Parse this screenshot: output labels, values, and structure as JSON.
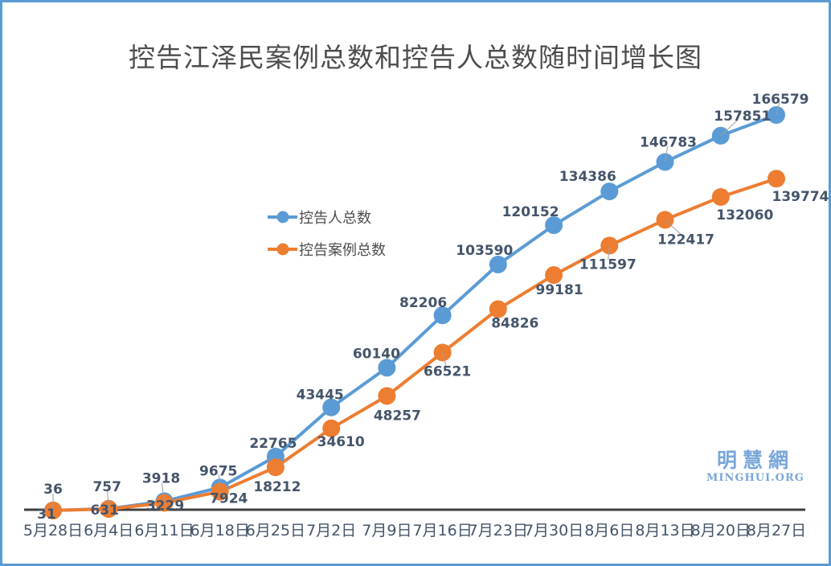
{
  "title": "控告江泽民案例总数和控告人总数随时间增长图",
  "watermark": {
    "cjk": "明慧網",
    "latin": "MINGHUI.ORG"
  },
  "legend": [
    {
      "label": "控告人总数",
      "color": "#5b9bd5"
    },
    {
      "label": "控告案例总数",
      "color": "#ed7d31"
    }
  ],
  "colors": {
    "blue_series": "#5b9bd5",
    "orange_series": "#ed7d31",
    "data_label": "#44546a",
    "axis_line": "#3f3f3f",
    "title_text": "#4d4d4d",
    "frame_border": "#5b9bd5",
    "watermark": "#79a7d9",
    "leader_line": "#9e9e9e"
  },
  "chart_data": {
    "type": "line",
    "title": "控告江泽民案例总数和控告人总数随时间增长图",
    "xlabel": "",
    "ylabel": "",
    "grid": false,
    "legend_position": "center-left",
    "ylim": [
      0,
      170000
    ],
    "categories": [
      "5月28日",
      "6月4日",
      "6月11日",
      "6月18日",
      "6月25日",
      "7月2日",
      "7月9日",
      "7月16日",
      "7月23日",
      "7月30日",
      "8月6日",
      "8月13日",
      "8月20日",
      "8月27日"
    ],
    "series": [
      {
        "name": "控告人总数",
        "color": "#5b9bd5",
        "values": [
          36,
          757,
          3918,
          9675,
          22765,
          43445,
          60140,
          82206,
          103590,
          120152,
          134386,
          146783,
          157851,
          166579
        ]
      },
      {
        "name": "控告案例总数",
        "color": "#ed7d31",
        "values": [
          31,
          631,
          3229,
          7924,
          18212,
          34610,
          48257,
          66521,
          84826,
          99181,
          111597,
          122417,
          132060,
          139774
        ]
      }
    ],
    "layout": {
      "x_first": 63,
      "x_last": 963,
      "y_zero": 632,
      "y_at_max": 140,
      "max_value": 166579,
      "axis_y": 631,
      "axis_from": 27,
      "axis_to": 999,
      "x_label_baseline": 663,
      "dot_radius": 11,
      "line_width": 4,
      "label_offsets": [
        [
          [
            0,
            -27
          ],
          [
            -2,
            -28
          ],
          [
            -4,
            -29
          ],
          [
            -2,
            -21
          ],
          [
            -3,
            -17
          ],
          [
            -14,
            -16
          ],
          [
            -13,
            -18
          ],
          [
            -24,
            -16
          ],
          [
            -17,
            -18
          ],
          [
            -29,
            -17
          ],
          [
            -27,
            -19
          ],
          [
            4,
            -25
          ],
          [
            27,
            -25
          ],
          [
            5,
            -20
          ]
        ],
        [
          [
            -8,
            4
          ],
          [
            -5,
            1
          ],
          [
            1,
            3
          ],
          [
            11,
            8
          ],
          [
            2,
            24
          ],
          [
            12,
            16
          ],
          [
            13,
            24
          ],
          [
            6,
            23
          ],
          [
            21,
            17
          ],
          [
            7,
            18
          ],
          [
            -2,
            23
          ],
          [
            26,
            24
          ],
          [
            30,
            22
          ],
          [
            30,
            22
          ]
        ]
      ],
      "leader_lines": [
        [
          0,
          1,
          2,
          3,
          11,
          12,
          13
        ],
        [
          2,
          3,
          7,
          10,
          11
        ]
      ]
    }
  }
}
